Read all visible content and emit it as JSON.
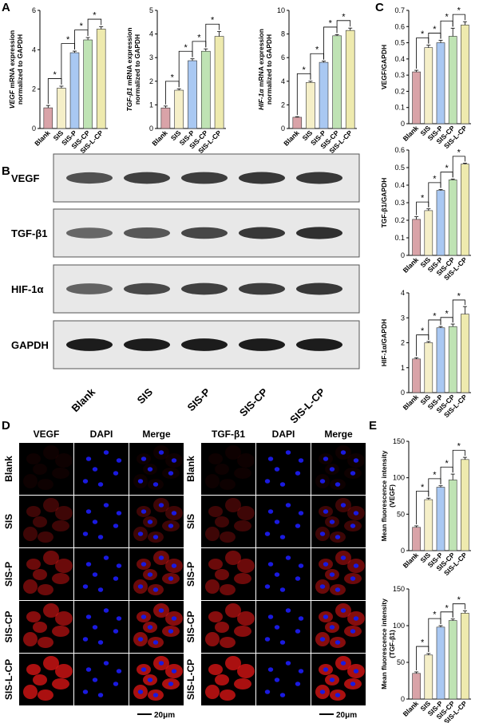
{
  "panel_labels": [
    "A",
    "B",
    "C",
    "D",
    "E"
  ],
  "groups": [
    "Blank",
    "SIS",
    "SIS-P",
    "SIS-CP",
    "SIS-L-CP"
  ],
  "colors": {
    "bars": [
      "#d9a3a8",
      "#f5efc8",
      "#a9c8f2",
      "#bfe3b4",
      "#eeeaae"
    ],
    "blot_bg": "#e8e8e8",
    "if_bg": "#000000",
    "if_red": "#e01515",
    "if_blue": "#1a1ae0"
  },
  "significance_mark": "*",
  "blot": {
    "rows": [
      "VEGF",
      "TGF-β1",
      "HIF-1α",
      "GAPDH"
    ],
    "band_intensity": [
      [
        0.7,
        0.78,
        0.8,
        0.82,
        0.82
      ],
      [
        0.6,
        0.68,
        0.75,
        0.82,
        0.86
      ],
      [
        0.62,
        0.74,
        0.78,
        0.8,
        0.82
      ],
      [
        0.95,
        0.95,
        0.95,
        0.95,
        0.95
      ]
    ]
  },
  "if": {
    "left": {
      "columns": [
        "VEGF",
        "DAPI",
        "Merge"
      ]
    },
    "right": {
      "columns": [
        "TGF-β1",
        "DAPI",
        "Merge"
      ]
    },
    "rows": [
      "Blank",
      "SIS",
      "SIS-P",
      "SIS-CP",
      "SIS-L-CP"
    ],
    "red_intensity": [
      0.08,
      0.35,
      0.6,
      0.75,
      0.95
    ],
    "scale_bar": "20μm"
  },
  "chart_data": [
    {
      "panel": "A",
      "type": "bar",
      "categories": [
        "Blank",
        "SIS",
        "SIS-P",
        "SIS-CP",
        "SIS-L-CP"
      ],
      "values": [
        1.05,
        2.05,
        3.85,
        4.5,
        5.05
      ],
      "errors": [
        0.12,
        0.1,
        0.08,
        0.12,
        0.12
      ],
      "ylabel_gene": "VEGF",
      "ylabel_rest": " mRNA expression",
      "ylabel2": "normalized to GAPDH",
      "ylim": [
        0,
        6
      ],
      "yticks": [
        0,
        2,
        4,
        6
      ],
      "significance": [
        "*",
        "*",
        "*",
        "*"
      ]
    },
    {
      "panel": "A",
      "type": "bar",
      "categories": [
        "Blank",
        "SIS",
        "SIS-P",
        "SIS-CP",
        "SIS-L-CP"
      ],
      "values": [
        0.87,
        1.62,
        2.87,
        3.27,
        3.9
      ],
      "errors": [
        0.08,
        0.06,
        0.08,
        0.1,
        0.2
      ],
      "ylabel_gene": "TGF-β1",
      "ylabel_rest": " mRNA expression",
      "ylabel2": "normalized to GAPDH",
      "ylim": [
        0,
        5
      ],
      "yticks": [
        0,
        1,
        2,
        3,
        4,
        5
      ],
      "significance": [
        "*",
        "*",
        "*",
        "*"
      ]
    },
    {
      "panel": "A",
      "type": "bar",
      "categories": [
        "Blank",
        "SIS",
        "SIS-P",
        "SIS-CP",
        "SIS-L-CP"
      ],
      "values": [
        0.95,
        3.9,
        5.6,
        7.85,
        8.3
      ],
      "errors": [
        0.05,
        0.1,
        0.1,
        0.1,
        0.2
      ],
      "ylabel_gene": "HIF-1α",
      "ylabel_rest": " mRNA expression",
      "ylabel2": "normalized to GAPDH",
      "ylim": [
        0,
        10
      ],
      "yticks": [
        0,
        2,
        4,
        6,
        8,
        10
      ],
      "significance": [
        "*",
        "*",
        "*",
        "*"
      ]
    },
    {
      "panel": "C",
      "type": "bar",
      "categories": [
        "Blank",
        "SIS",
        "SIS-P",
        "SIS-CP",
        "SIS-L-CP"
      ],
      "values": [
        0.32,
        0.47,
        0.5,
        0.54,
        0.61
      ],
      "errors": [
        0.01,
        0.015,
        0.015,
        0.05,
        0.02
      ],
      "ylabel_gene": "",
      "ylabel_rest": "VEGF/GAPDH",
      "ylabel2": "",
      "ylim": [
        0,
        0.7
      ],
      "yticks": [
        0,
        0.1,
        0.2,
        0.3,
        0.4,
        0.5,
        0.6,
        0.7
      ],
      "significance": [
        "*",
        "*",
        "*",
        "*"
      ]
    },
    {
      "panel": "C",
      "type": "bar",
      "categories": [
        "Blank",
        "SIS",
        "SIS-P",
        "SIS-CP",
        "SIS-L-CP"
      ],
      "values": [
        0.205,
        0.255,
        0.37,
        0.43,
        0.52
      ],
      "errors": [
        0.015,
        0.01,
        0.005,
        0.005,
        0.005
      ],
      "ylabel_gene": "",
      "ylabel_rest": "TGF-β1/GAPDH",
      "ylabel2": "",
      "ylim": [
        0,
        0.6
      ],
      "yticks": [
        0,
        0.1,
        0.2,
        0.3,
        0.4,
        0.5,
        0.6
      ],
      "significance": [
        "*",
        "*",
        "*",
        "*"
      ]
    },
    {
      "panel": "C",
      "type": "bar",
      "categories": [
        "Blank",
        "SIS",
        "SIS-P",
        "SIS-CP",
        "SIS-L-CP"
      ],
      "values": [
        1.35,
        2.0,
        2.6,
        2.65,
        3.15
      ],
      "errors": [
        0.05,
        0.05,
        0.05,
        0.1,
        0.3
      ],
      "ylabel_gene": "",
      "ylabel_rest": "HIF-1α/GAPDH",
      "ylabel2": "",
      "ylim": [
        0,
        4
      ],
      "yticks": [
        0,
        1,
        2,
        3,
        4
      ],
      "significance": [
        "*",
        "*",
        "*",
        "*"
      ]
    },
    {
      "panel": "E",
      "type": "bar",
      "categories": [
        "Blank",
        "SIS",
        "SIS-P",
        "SIS-CP",
        "SIS-L-CP"
      ],
      "values": [
        32,
        70,
        87,
        97,
        125
      ],
      "errors": [
        2,
        2,
        2,
        8,
        3
      ],
      "ylabel_gene": "",
      "ylabel_rest": "Mean fluorescence intensity",
      "ylabel2": "(VEGF)",
      "ylim": [
        0,
        150
      ],
      "yticks": [
        0,
        50,
        100,
        150
      ],
      "significance": [
        "*",
        "*",
        "*",
        "*"
      ]
    },
    {
      "panel": "E",
      "type": "bar",
      "categories": [
        "Blank",
        "SIS",
        "SIS-P",
        "SIS-CP",
        "SIS-L-CP"
      ],
      "values": [
        35,
        60,
        98,
        107,
        117
      ],
      "errors": [
        2,
        2,
        2,
        2,
        3
      ],
      "ylabel_gene": "",
      "ylabel_rest": "Mean fluorescence intensity",
      "ylabel2": "(TGF-β1)",
      "ylim": [
        0,
        150
      ],
      "yticks": [
        0,
        50,
        100,
        150
      ],
      "significance": [
        "*",
        "*",
        "*",
        "*"
      ]
    }
  ]
}
